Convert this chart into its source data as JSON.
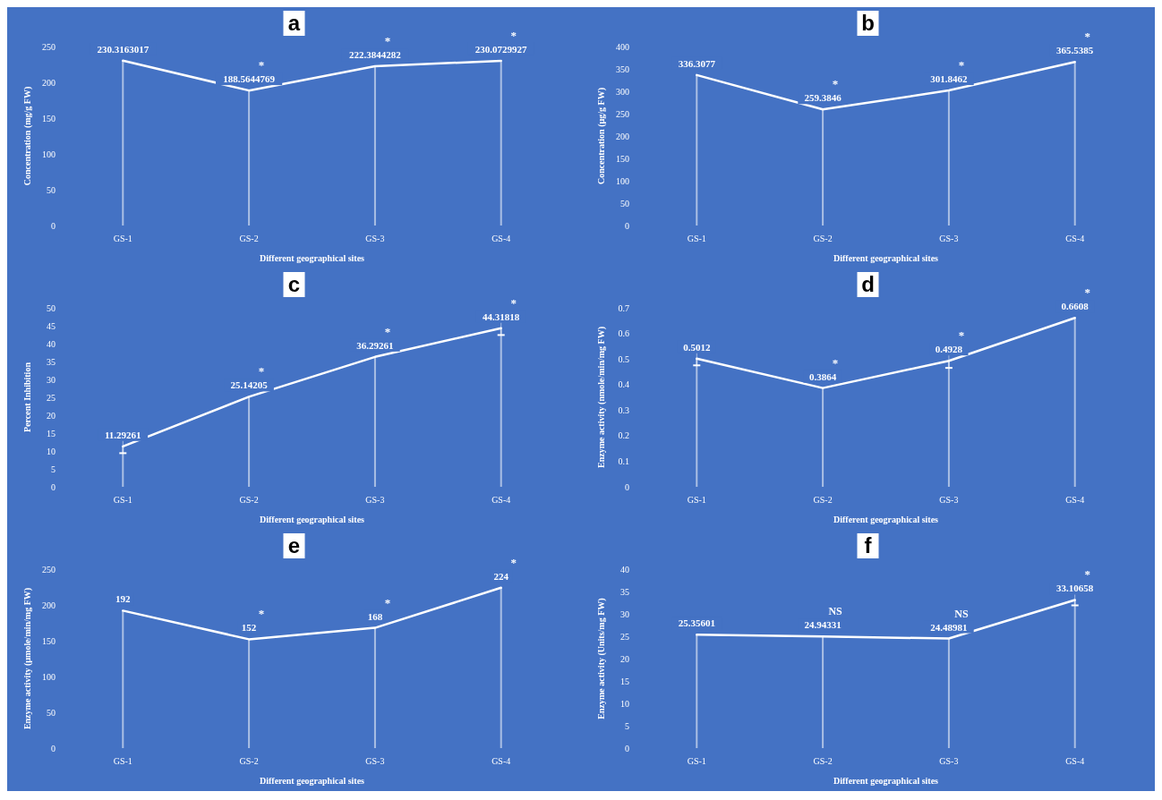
{
  "chart_data": [
    {
      "type": "line",
      "title": "a",
      "xlabel": "Different geographical sites",
      "ylabel": "Concentration (mg/g FW)",
      "categories": [
        "GS-1",
        "GS-2",
        "GS-3",
        "GS-4"
      ],
      "ylim": [
        0,
        250
      ],
      "yticks": [
        0,
        50,
        100,
        150,
        200,
        250
      ],
      "series": [
        {
          "type": "bar",
          "color": "#ffffff",
          "values": [
            230.3163017,
            188.5644769,
            222.3844282,
            230.0729927
          ]
        },
        {
          "color": "#ffffff",
          "values": [
            230.3163017,
            188.5644769,
            222.3844282,
            230.0729927
          ],
          "value_labels": [
            "230.3163017",
            "188.5644769",
            "222.3844282",
            "230.0729927"
          ]
        }
      ],
      "annotations": [
        {
          "text": "*",
          "x": "GS-2",
          "y": 188.5644769
        },
        {
          "text": "*",
          "x": "GS-3",
          "y": 222.3844282
        },
        {
          "text": "*",
          "x": "GS-4",
          "y": 230.0729927
        }
      ]
    },
    {
      "type": "line",
      "title": "b",
      "xlabel": "Different geographical sites",
      "ylabel": "Concentration (µg/g FW)",
      "categories": [
        "GS-1",
        "GS-2",
        "GS-3",
        "GS-4"
      ],
      "ylim": [
        0,
        400
      ],
      "yticks": [
        0,
        50,
        100,
        150,
        200,
        250,
        300,
        350,
        400
      ],
      "series": [
        {
          "type": "bar",
          "color": "#ffffff",
          "values": [
            336.3077,
            259.3846,
            301.8462,
            365.5385
          ]
        },
        {
          "color": "#ffffff",
          "values": [
            336.3077,
            259.3846,
            301.8462,
            365.5385
          ],
          "value_labels": [
            "336.3077",
            "259.3846",
            "301.8462",
            "365.5385"
          ]
        }
      ],
      "annotations": [
        {
          "text": "*",
          "x": "GS-2",
          "y": 259.3846
        },
        {
          "text": "*",
          "x": "GS-3",
          "y": 301.8462
        },
        {
          "text": "*",
          "x": "GS-4",
          "y": 365.5385
        }
      ]
    },
    {
      "type": "line",
      "title": "c",
      "xlabel": "Different geographical sites",
      "ylabel": "Percent Inhibition",
      "categories": [
        "GS-1",
        "GS-2",
        "GS-3",
        "GS-4"
      ],
      "ylim": [
        0,
        50
      ],
      "yticks": [
        0,
        5,
        10,
        15,
        20,
        25,
        30,
        35,
        40,
        45,
        50
      ],
      "series": [
        {
          "type": "bar",
          "color": "#ffffff",
          "values": [
            11.29261,
            25.14205,
            36.29261,
            44.31818
          ]
        },
        {
          "color": "#ffffff",
          "values": [
            11.29261,
            25.14205,
            36.29261,
            44.31818
          ],
          "value_labels": [
            "11.29261",
            "25.14205",
            "36.29261",
            "44.31818"
          ],
          "errors": [
            [
              9.4,
              13.3
            ],
            null,
            null,
            [
              42.4,
              46.3
            ]
          ]
        }
      ],
      "annotations": [
        {
          "text": "*",
          "x": "GS-2",
          "y": 25.14205
        },
        {
          "text": "*",
          "x": "GS-3",
          "y": 36.29261
        },
        {
          "text": "*",
          "x": "GS-4",
          "y": 44.31818
        }
      ]
    },
    {
      "type": "line",
      "title": "d",
      "xlabel": "Different geographical sites",
      "ylabel": "Enzyme activity  (nmole/min/mg FW)",
      "categories": [
        "GS-1",
        "GS-2",
        "GS-3",
        "GS-4"
      ],
      "ylim": [
        0,
        0.7
      ],
      "yticks": [
        0,
        0.1,
        0.2,
        0.3,
        0.4,
        0.5,
        0.6,
        0.7
      ],
      "series": [
        {
          "type": "bar",
          "color": "#ffffff",
          "values": [
            0.5012,
            0.3864,
            0.4928,
            0.6608
          ]
        },
        {
          "color": "#ffffff",
          "values": [
            0.5012,
            0.3864,
            0.4928,
            0.6608
          ],
          "value_labels": [
            "0.5012",
            "0.3864",
            "0.4928",
            "0.6608"
          ],
          "errors": [
            [
              0.475,
              0.53
            ],
            null,
            [
              0.465,
              0.525
            ],
            null
          ]
        }
      ],
      "annotations": [
        {
          "text": "*",
          "x": "GS-2",
          "y": 0.3864
        },
        {
          "text": "*",
          "x": "GS-3",
          "y": 0.4928
        },
        {
          "text": "*",
          "x": "GS-4",
          "y": 0.6608
        }
      ]
    },
    {
      "type": "line",
      "title": "e",
      "xlabel": "Different geographical sites",
      "ylabel": "Enzyme activity (µmole/min/mg FW)",
      "categories": [
        "GS-1",
        "GS-2",
        "GS-3",
        "GS-4"
      ],
      "ylim": [
        0,
        250
      ],
      "yticks": [
        0,
        50,
        100,
        150,
        200,
        250
      ],
      "series": [
        {
          "type": "bar",
          "color": "#ffffff",
          "values": [
            192,
            152,
            168,
            224
          ]
        },
        {
          "color": "#ffffff",
          "values": [
            192,
            152,
            168,
            224
          ],
          "value_labels": [
            "192",
            "152",
            "168",
            "224"
          ]
        }
      ],
      "annotations": [
        {
          "text": "*",
          "x": "GS-2",
          "y": 152
        },
        {
          "text": "*",
          "x": "GS-3",
          "y": 168
        },
        {
          "text": "*",
          "x": "GS-4",
          "y": 224
        }
      ]
    },
    {
      "type": "line",
      "title": "f",
      "xlabel": "Different geographical sites",
      "ylabel": "Enzyme activity (Units/mg FW)",
      "categories": [
        "GS-1",
        "GS-2",
        "GS-3",
        "GS-4"
      ],
      "ylim": [
        0,
        40
      ],
      "yticks": [
        0,
        5,
        10,
        15,
        20,
        25,
        30,
        35,
        40
      ],
      "series": [
        {
          "type": "bar",
          "color": "#ffffff",
          "values": [
            25.35601,
            24.94331,
            24.48981,
            33.10658
          ]
        },
        {
          "color": "#ffffff",
          "values": [
            25.35601,
            24.94331,
            24.48981,
            33.10658
          ],
          "value_labels": [
            "25.35601",
            "24.94331",
            "24.48981",
            "33.10658"
          ],
          "errors": [
            null,
            null,
            null,
            [
              31.9,
              34.7
            ]
          ]
        }
      ],
      "annotations": [
        {
          "text": "NS",
          "x": "GS-2",
          "y": 24.94331
        },
        {
          "text": "NS",
          "x": "GS-3",
          "y": 24.48981
        },
        {
          "text": "*",
          "x": "GS-4",
          "y": 33.10658
        }
      ]
    }
  ]
}
